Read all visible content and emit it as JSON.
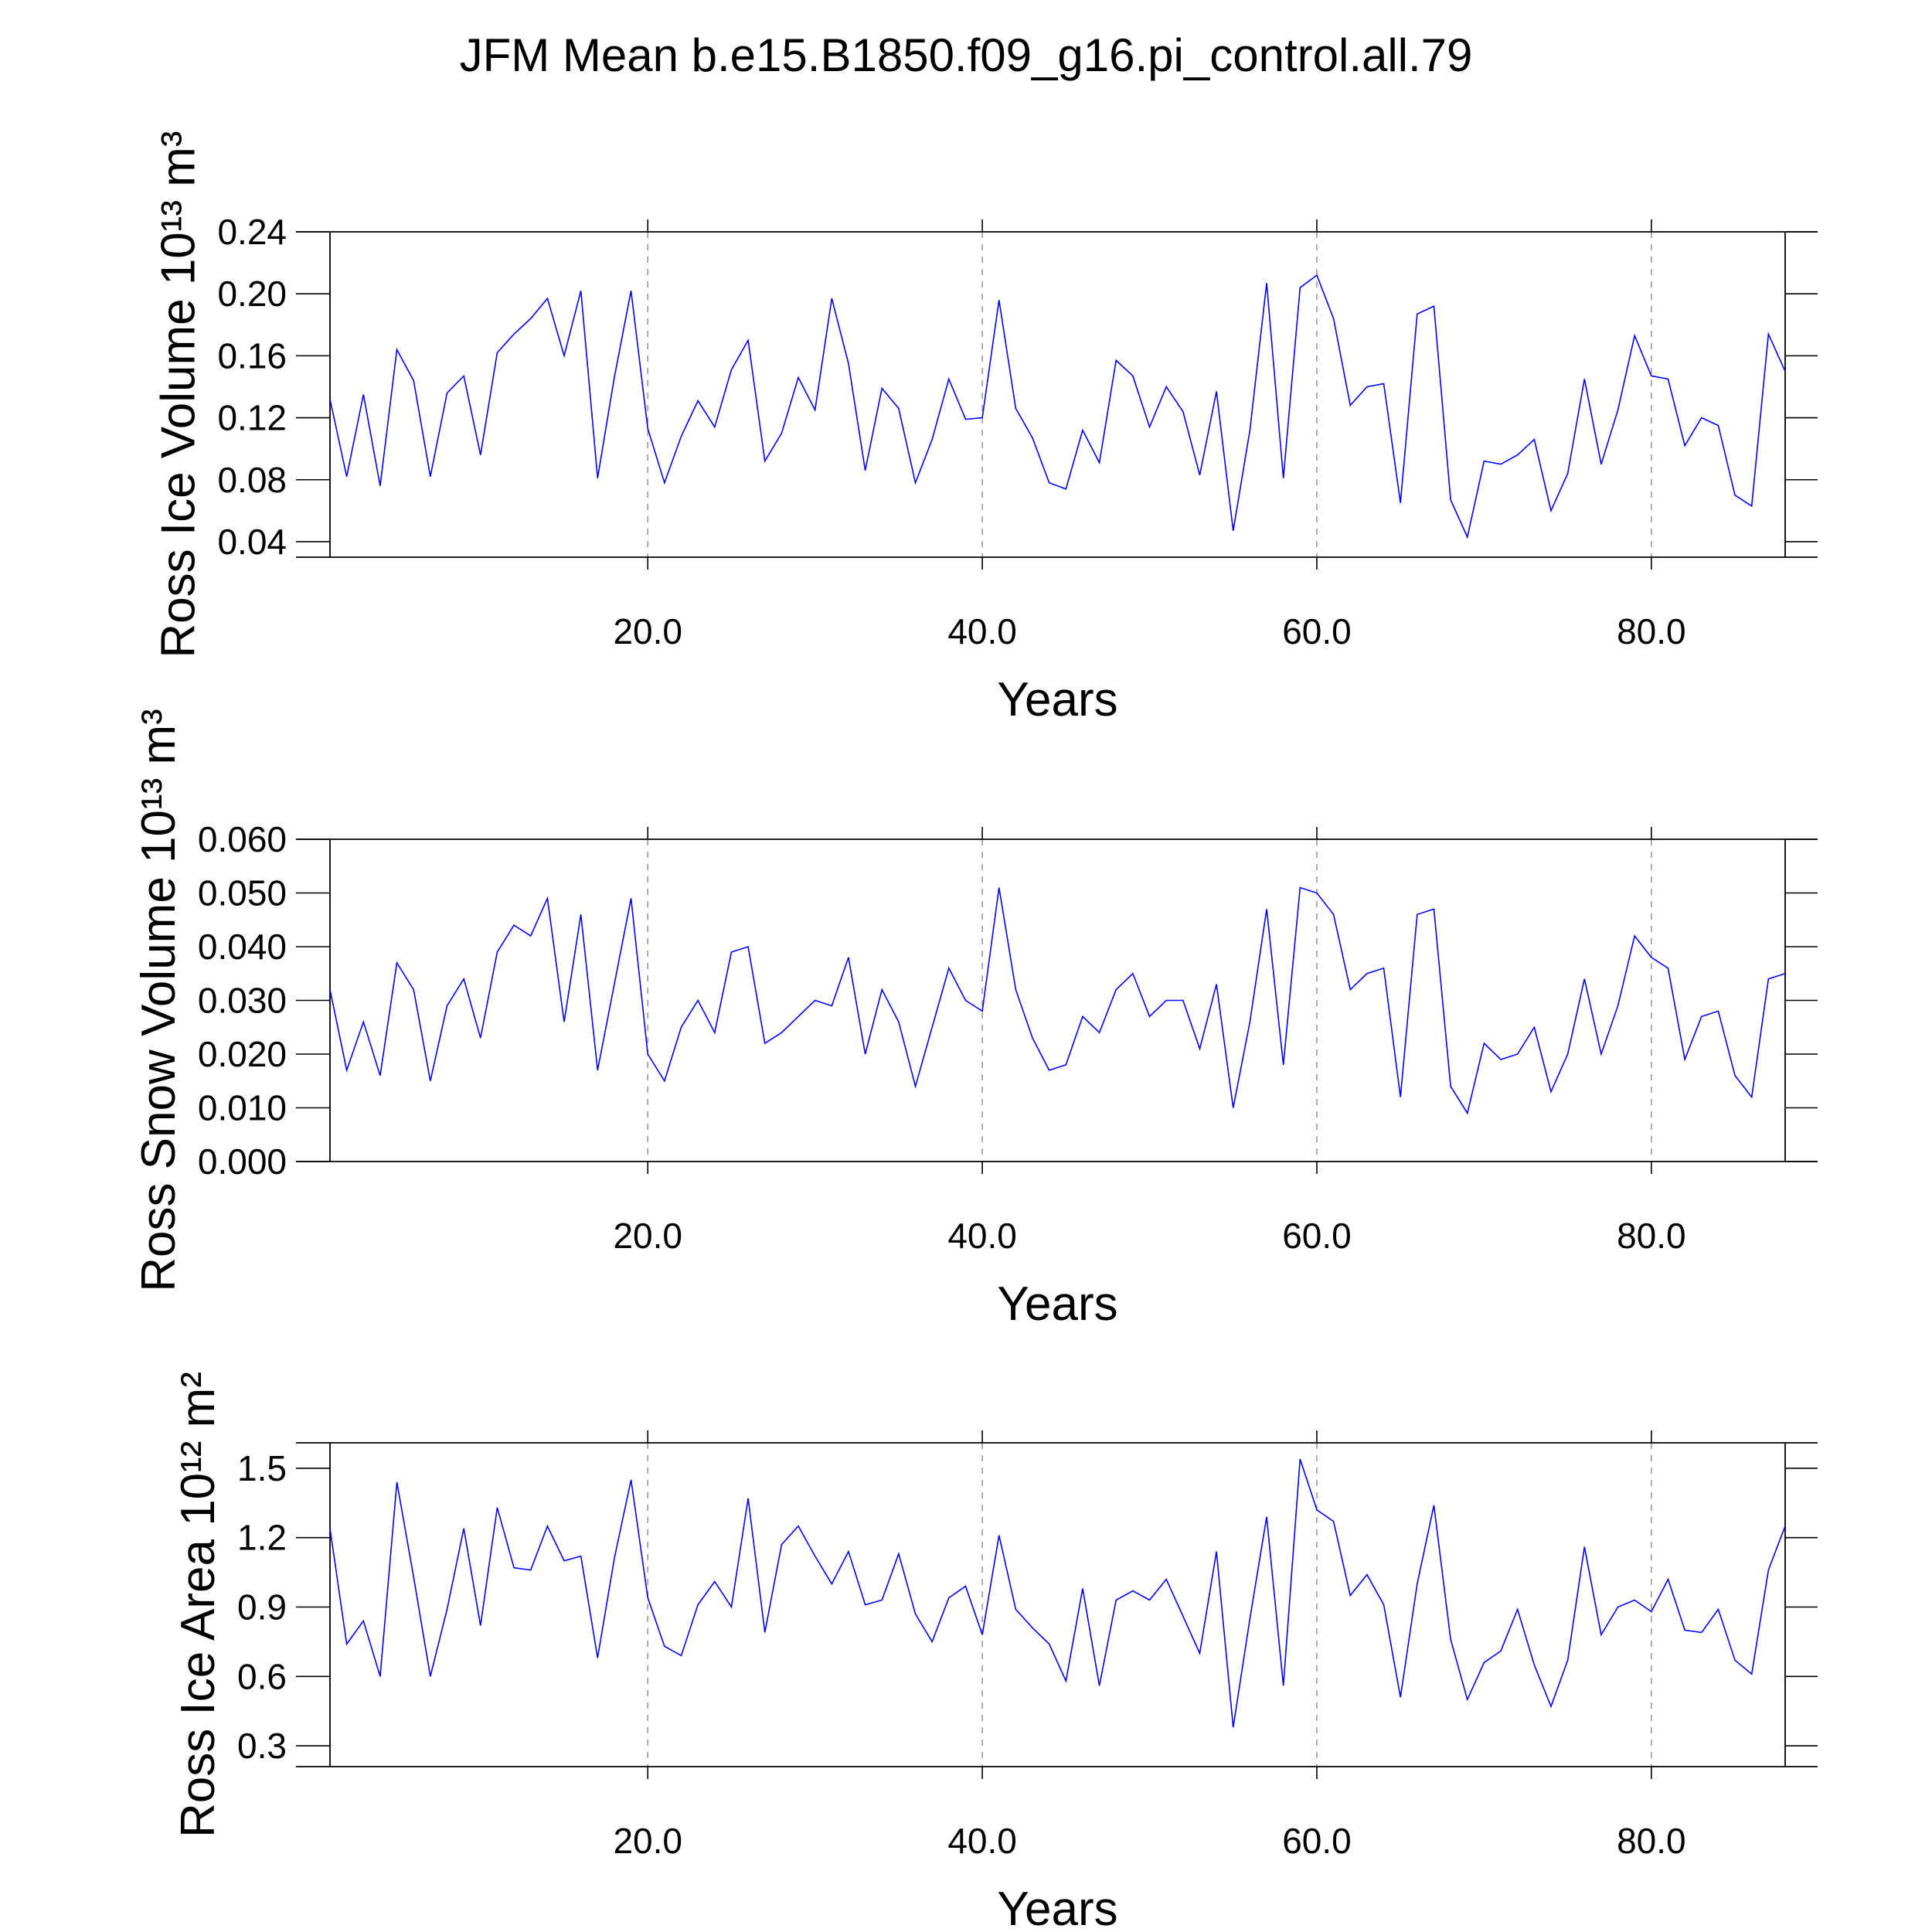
{
  "title": "JFM Mean b.e15.B1850.f09_g16.pi_control.all.79",
  "chart_data": [
    {
      "type": "line",
      "ylabel": "Ross Ice Volume 10¹³ m³",
      "xlabel": "Years",
      "xlim": [
        1,
        88
      ],
      "ylim": [
        0.03,
        0.24
      ],
      "xticks": [
        {
          "value": 20,
          "label": "20.0"
        },
        {
          "value": 40,
          "label": "40.0"
        },
        {
          "value": 60,
          "label": "60.0"
        },
        {
          "value": 80,
          "label": "80.0"
        }
      ],
      "yticks": [
        0.04,
        0.08,
        0.12,
        0.16,
        {
          "value": 0.2,
          "label": "0.20"
        },
        0.24
      ],
      "grid": true,
      "x": [
        1,
        2,
        3,
        4,
        5,
        6,
        7,
        8,
        9,
        10,
        11,
        12,
        13,
        14,
        15,
        16,
        17,
        18,
        19,
        20,
        21,
        22,
        23,
        24,
        25,
        26,
        27,
        28,
        29,
        30,
        31,
        32,
        33,
        34,
        35,
        36,
        37,
        38,
        39,
        40,
        41,
        42,
        43,
        44,
        45,
        46,
        47,
        48,
        49,
        50,
        51,
        52,
        53,
        54,
        55,
        56,
        57,
        58,
        59,
        60,
        61,
        62,
        63,
        64,
        65,
        66,
        67,
        68,
        69,
        70,
        71,
        72,
        73,
        74,
        75,
        76,
        77,
        78,
        79,
        80,
        81,
        82,
        83,
        84,
        85,
        86,
        87,
        88
      ],
      "series": [
        {
          "color": "#0000ff",
          "values": [
            0.132,
            0.082,
            0.135,
            0.076,
            0.164,
            0.144,
            0.082,
            0.136,
            0.147,
            0.096,
            0.162,
            0.174,
            0.184,
            0.197,
            0.16,
            0.202,
            0.081,
            0.146,
            0.202,
            0.113,
            0.078,
            0.108,
            0.131,
            0.114,
            0.151,
            0.17,
            0.092,
            0.11,
            0.146,
            0.125,
            0.197,
            0.155,
            0.086,
            0.139,
            0.126,
            0.078,
            0.106,
            0.145,
            0.119,
            0.12,
            0.196,
            0.126,
            0.107,
            0.078,
            0.074,
            0.112,
            0.091,
            0.157,
            0.147,
            0.114,
            0.14,
            0.124,
            0.083,
            0.137,
            0.047,
            0.112,
            0.207,
            0.081,
            0.204,
            0.212,
            0.184,
            0.128,
            0.14,
            0.142,
            0.065,
            0.187,
            0.192,
            0.067,
            0.043,
            0.092,
            0.09,
            0.096,
            0.106,
            0.06,
            0.084,
            0.145,
            0.09,
            0.125,
            0.173,
            0.147,
            0.145,
            0.102,
            0.12,
            0.115,
            0.07,
            0.063,
            0.174,
            0.15
          ]
        }
      ]
    },
    {
      "type": "line",
      "ylabel": "Ross Snow Volume 10¹³ m³",
      "xlabel": "Years",
      "xlim": [
        1,
        88
      ],
      "ylim": [
        0,
        0.06
      ],
      "xticks": [
        {
          "value": 20,
          "label": "20.0"
        },
        {
          "value": 40,
          "label": "40.0"
        },
        {
          "value": 60,
          "label": "60.0"
        },
        {
          "value": 80,
          "label": "80.0"
        }
      ],
      "yticks": [
        {
          "value": 0,
          "label": "0.000"
        },
        {
          "value": 0.01,
          "label": "0.010"
        },
        {
          "value": 0.02,
          "label": "0.020"
        },
        {
          "value": 0.03,
          "label": "0.030"
        },
        {
          "value": 0.04,
          "label": "0.040"
        },
        {
          "value": 0.05,
          "label": "0.050"
        },
        {
          "value": 0.06,
          "label": "0.060"
        }
      ],
      "grid": true,
      "x": [
        1,
        2,
        3,
        4,
        5,
        6,
        7,
        8,
        9,
        10,
        11,
        12,
        13,
        14,
        15,
        16,
        17,
        18,
        19,
        20,
        21,
        22,
        23,
        24,
        25,
        26,
        27,
        28,
        29,
        30,
        31,
        32,
        33,
        34,
        35,
        36,
        37,
        38,
        39,
        40,
        41,
        42,
        43,
        44,
        45,
        46,
        47,
        48,
        49,
        50,
        51,
        52,
        53,
        54,
        55,
        56,
        57,
        58,
        59,
        60,
        61,
        62,
        63,
        64,
        65,
        66,
        67,
        68,
        69,
        70,
        71,
        72,
        73,
        74,
        75,
        76,
        77,
        78,
        79,
        80,
        81,
        82,
        83,
        84,
        85,
        86,
        87,
        88
      ],
      "series": [
        {
          "color": "#0000ff",
          "values": [
            0.032,
            0.017,
            0.026,
            0.016,
            0.037,
            0.032,
            0.015,
            0.029,
            0.034,
            0.023,
            0.039,
            0.044,
            0.042,
            0.049,
            0.026,
            0.046,
            0.017,
            0.033,
            0.049,
            0.02,
            0.015,
            0.025,
            0.03,
            0.024,
            0.039,
            0.04,
            0.022,
            0.024,
            0.027,
            0.03,
            0.029,
            0.038,
            0.02,
            0.032,
            0.026,
            0.014,
            0.025,
            0.036,
            0.03,
            0.028,
            0.051,
            0.032,
            0.023,
            0.017,
            0.018,
            0.027,
            0.024,
            0.032,
            0.035,
            0.027,
            0.03,
            0.03,
            0.021,
            0.033,
            0.01,
            0.026,
            0.047,
            0.018,
            0.051,
            0.05,
            0.046,
            0.032,
            0.035,
            0.036,
            0.012,
            0.046,
            0.047,
            0.014,
            0.009,
            0.022,
            0.019,
            0.02,
            0.025,
            0.013,
            0.02,
            0.034,
            0.02,
            0.029,
            0.042,
            0.038,
            0.036,
            0.019,
            0.027,
            0.028,
            0.016,
            0.012,
            0.034,
            0.035
          ]
        }
      ]
    },
    {
      "type": "line",
      "ylabel": "Ross Ice Area 10¹² m²",
      "xlabel": "Years",
      "xlim": [
        1,
        88
      ],
      "ylim": [
        0.21,
        1.61
      ],
      "xticks": [
        {
          "value": 20,
          "label": "20.0"
        },
        {
          "value": 40,
          "label": "40.0"
        },
        {
          "value": 60,
          "label": "60.0"
        },
        {
          "value": 80,
          "label": "80.0"
        }
      ],
      "yticks": [
        0.3,
        0.6,
        0.9,
        1.2,
        1.5
      ],
      "grid": true,
      "x": [
        1,
        2,
        3,
        4,
        5,
        6,
        7,
        8,
        9,
        10,
        11,
        12,
        13,
        14,
        15,
        16,
        17,
        18,
        19,
        20,
        21,
        22,
        23,
        24,
        25,
        26,
        27,
        28,
        29,
        30,
        31,
        32,
        33,
        34,
        35,
        36,
        37,
        38,
        39,
        40,
        41,
        42,
        43,
        44,
        45,
        46,
        47,
        48,
        49,
        50,
        51,
        52,
        53,
        54,
        55,
        56,
        57,
        58,
        59,
        60,
        61,
        62,
        63,
        64,
        65,
        66,
        67,
        68,
        69,
        70,
        71,
        72,
        73,
        74,
        75,
        76,
        77,
        78,
        79,
        80,
        81,
        82,
        83,
        84,
        85,
        86,
        87,
        88
      ],
      "series": [
        {
          "color": "#0000ff",
          "values": [
            1.24,
            0.74,
            0.84,
            0.6,
            1.44,
            1.03,
            0.6,
            0.89,
            1.24,
            0.82,
            1.33,
            1.07,
            1.06,
            1.25,
            1.1,
            1.12,
            0.68,
            1.11,
            1.45,
            0.94,
            0.73,
            0.69,
            0.91,
            1.01,
            0.9,
            1.37,
            0.79,
            1.17,
            1.25,
            1.12,
            1.0,
            1.14,
            0.91,
            0.93,
            1.13,
            0.87,
            0.75,
            0.94,
            0.99,
            0.78,
            1.21,
            0.89,
            0.81,
            0.74,
            0.58,
            0.98,
            0.56,
            0.93,
            0.97,
            0.93,
            1.02,
            0.86,
            0.7,
            1.14,
            0.38,
            0.85,
            1.29,
            0.56,
            1.54,
            1.32,
            1.27,
            0.95,
            1.04,
            0.91,
            0.51,
            1.0,
            1.34,
            0.76,
            0.5,
            0.66,
            0.71,
            0.89,
            0.65,
            0.47,
            0.67,
            1.16,
            0.78,
            0.9,
            0.93,
            0.88,
            1.02,
            0.8,
            0.79,
            0.89,
            0.67,
            0.61,
            1.06,
            1.25
          ]
        }
      ]
    }
  ]
}
